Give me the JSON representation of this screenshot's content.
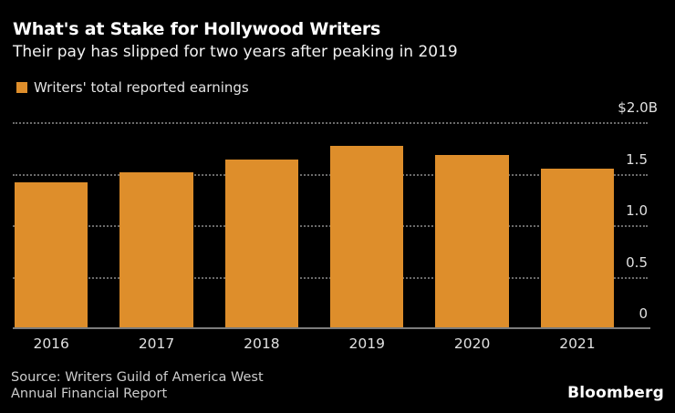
{
  "header": {
    "title": "What's at Stake for Hollywood Writers",
    "subtitle": "Their pay has slipped for two years after peaking in 2019"
  },
  "legend": {
    "label": "Writers' total reported earnings",
    "swatch_color": "#de8e2b"
  },
  "chart_data": {
    "type": "bar",
    "title": "What's at Stake for Hollywood Writers",
    "subtitle": "Their pay has slipped for two years after peaking in 2019",
    "series_name": "Writers' total reported earnings",
    "categories": [
      "2016",
      "2017",
      "2018",
      "2019",
      "2020",
      "2021"
    ],
    "values": [
      1.42,
      1.51,
      1.64,
      1.77,
      1.68,
      1.55
    ],
    "unit": "billions of dollars",
    "ylim": [
      0,
      2.0
    ],
    "yticks": [
      {
        "value": 2.0,
        "label": "$2.0B"
      },
      {
        "value": 1.5,
        "label": "1.5"
      },
      {
        "value": 1.0,
        "label": "1.0"
      },
      {
        "value": 0.5,
        "label": "0.5"
      },
      {
        "value": 0.0,
        "label": "0"
      }
    ],
    "value_axis_side": "right",
    "grid": "horizontal-dotted",
    "legend_position": "top-left",
    "bar_color": "#de8e2b"
  },
  "footer": {
    "source_line1": "Source: Writers Guild of America West",
    "source_line2": "Annual Financial Report",
    "brand": "Bloomberg"
  },
  "colors": {
    "background": "#000000",
    "bar": "#de8e2b",
    "title_text": "#ffffff",
    "subtitle_text": "#f2f2f2",
    "axis_text": "#e0e0e0",
    "gridline": "#6a6a6a",
    "baseline": "#7c7c7c",
    "source_text": "#cdcdcd",
    "brand_text": "#ffffff"
  }
}
